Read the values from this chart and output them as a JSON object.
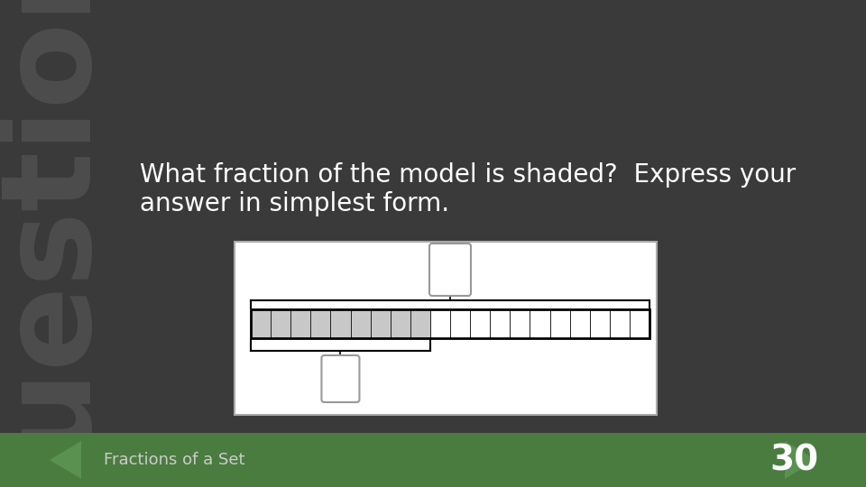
{
  "bg_color": "#3a3a3a",
  "title_text": "Question",
  "question_text": "What fraction of the model is shaded?  Express your\nanswer in simplest form.",
  "footer_text": "Fractions of a Set",
  "footer_number": "30",
  "footer_color": "#4a7c3f",
  "total_segments": 20,
  "shaded_segments": 9,
  "shaded_color": "#c8c8c8",
  "unshaded_color": "#ffffff",
  "bar_border_color": "#222222",
  "box_border_color": "#999999",
  "question_fontsize": 20,
  "watermark_fontsize": 100,
  "watermark_color": "#505050"
}
